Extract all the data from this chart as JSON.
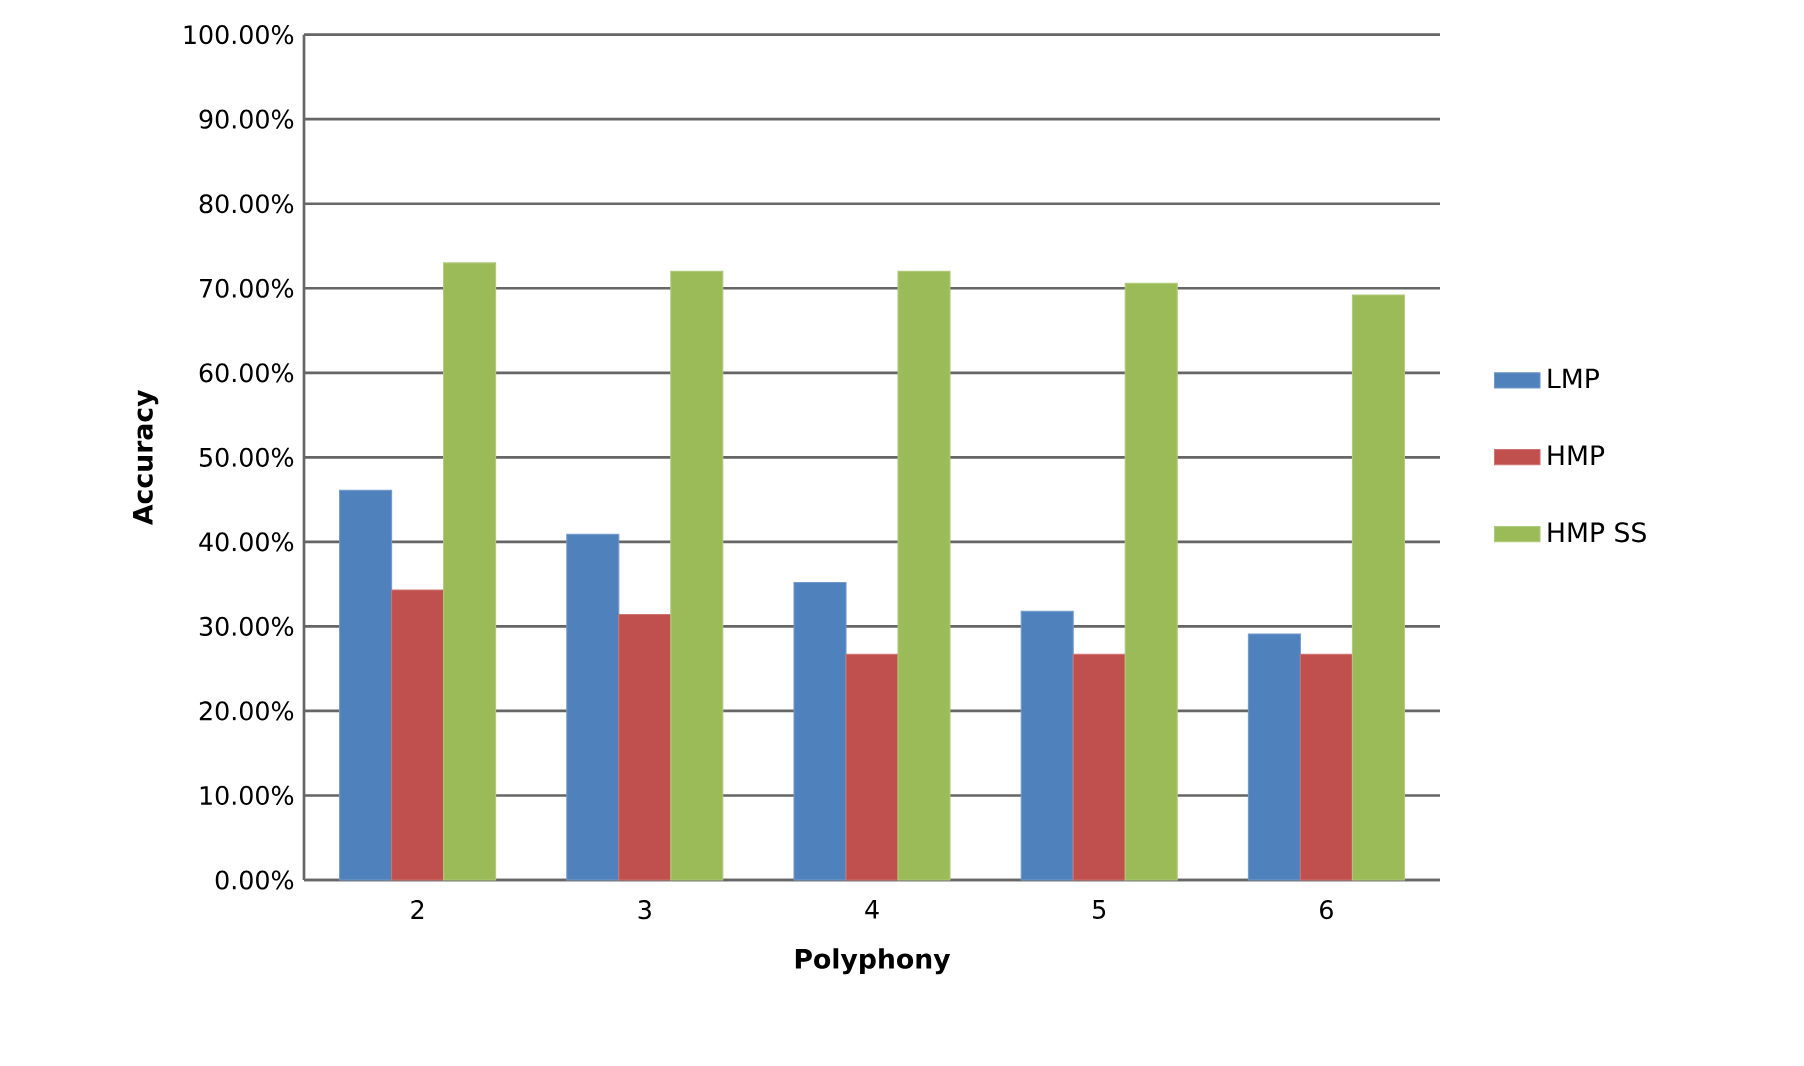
{
  "chart_data": {
    "type": "bar",
    "xlabel": "Polyphony",
    "ylabel": "Accuracy",
    "categories": [
      "2",
      "3",
      "4",
      "5",
      "6"
    ],
    "series": [
      {
        "name": "LMP",
        "color": "#4f81bd",
        "values": [
          46.1,
          40.9,
          35.2,
          31.8,
          29.1
        ]
      },
      {
        "name": "HMP",
        "color": "#c0504d",
        "values": [
          34.3,
          31.4,
          26.7,
          26.7,
          26.7
        ]
      },
      {
        "name": "HMP SS",
        "color": "#9bbb59",
        "values": [
          73.0,
          72.0,
          72.0,
          70.6,
          69.2
        ]
      }
    ],
    "ylim": [
      0,
      100
    ],
    "yticks": [
      {
        "value": 0,
        "label": "0.00%"
      },
      {
        "value": 10,
        "label": "10.00%"
      },
      {
        "value": 20,
        "label": "20.00%"
      },
      {
        "value": 30,
        "label": "30.00%"
      },
      {
        "value": 40,
        "label": "40.00%"
      },
      {
        "value": 50,
        "label": "50.00%"
      },
      {
        "value": 60,
        "label": "60.00%"
      },
      {
        "value": 70,
        "label": "70.00%"
      },
      {
        "value": 80,
        "label": "80.00%"
      },
      {
        "value": 90,
        "label": "90.00%"
      },
      {
        "value": 100,
        "label": "100.00%"
      }
    ],
    "grid": "y",
    "legend": "right"
  }
}
